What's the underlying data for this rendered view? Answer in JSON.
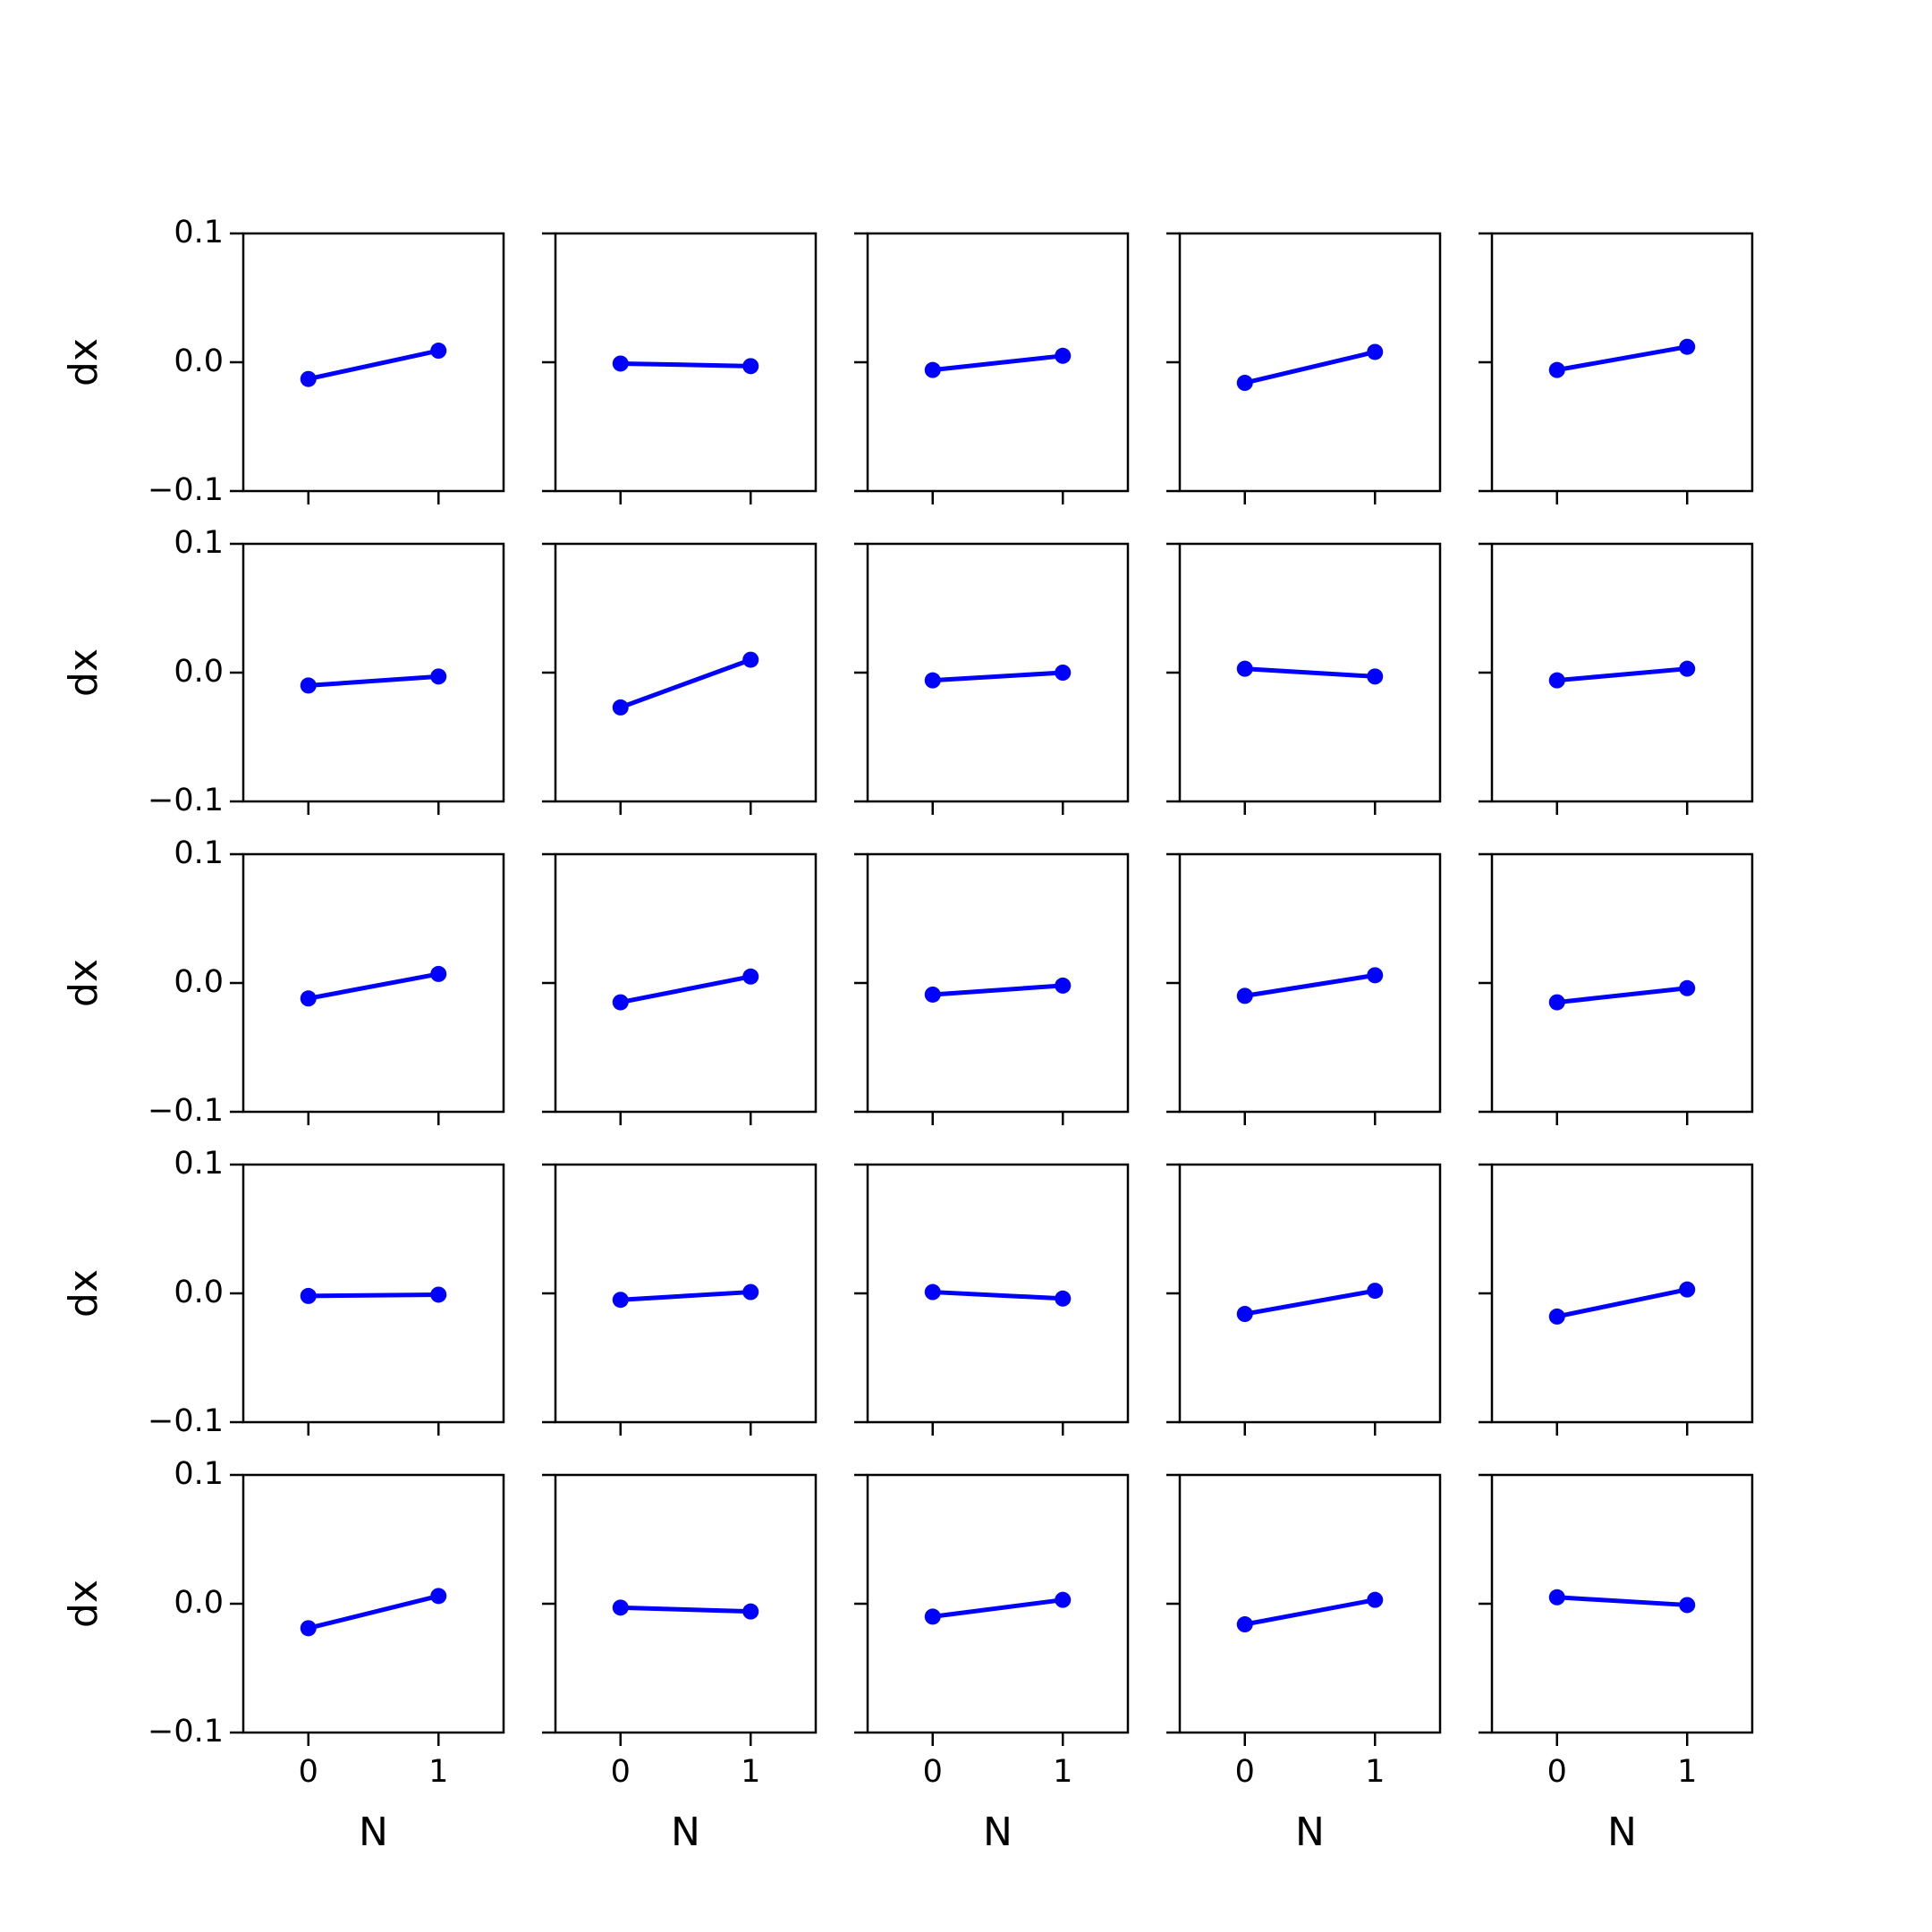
{
  "chart_data": {
    "type": "line",
    "layout": {
      "rows": 5,
      "cols": 5,
      "sharex": true,
      "sharey": true
    },
    "xlabel": "N",
    "ylabel": "dx",
    "xlim": [
      -0.5,
      1.5
    ],
    "ylim": [
      -0.1,
      0.1
    ],
    "xticks": [
      0,
      1
    ],
    "xtick_labels": [
      "0",
      "1"
    ],
    "yticks": [
      0.1,
      0.0,
      -0.1
    ],
    "ytick_labels": [
      "0.1",
      "0.0",
      "−0.1"
    ],
    "grid": false,
    "legend": "none",
    "line_color": "#0000ff",
    "marker": "circle",
    "x": [
      0,
      1
    ],
    "panels": [
      [
        -0.013,
        0.009
      ],
      [
        -0.001,
        -0.003
      ],
      [
        -0.006,
        0.005
      ],
      [
        -0.016,
        0.008
      ],
      [
        -0.006,
        0.012
      ],
      [
        -0.01,
        -0.003
      ],
      [
        -0.027,
        0.01
      ],
      [
        -0.006,
        0.0
      ],
      [
        0.003,
        -0.003
      ],
      [
        -0.006,
        0.003
      ],
      [
        -0.012,
        0.007
      ],
      [
        -0.015,
        0.005
      ],
      [
        -0.009,
        -0.002
      ],
      [
        -0.01,
        0.006
      ],
      [
        -0.015,
        -0.004
      ],
      [
        -0.002,
        -0.001
      ],
      [
        -0.005,
        0.001
      ],
      [
        0.001,
        -0.004
      ],
      [
        -0.016,
        0.002
      ],
      [
        -0.018,
        0.003
      ],
      [
        -0.019,
        0.006
      ],
      [
        -0.003,
        -0.006
      ],
      [
        -0.01,
        0.003
      ],
      [
        -0.016,
        0.003
      ],
      [
        0.005,
        -0.001
      ]
    ]
  }
}
